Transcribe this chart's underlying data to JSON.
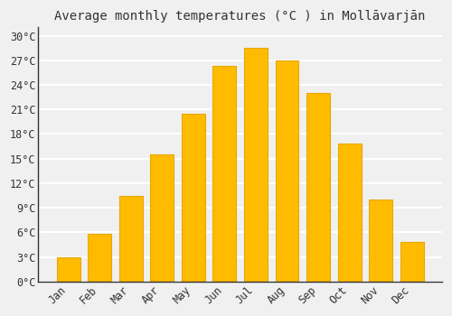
{
  "title": "Average monthly temperatures (°C ) in Mollāvarjān",
  "months": [
    "Jan",
    "Feb",
    "Mar",
    "Apr",
    "May",
    "Jun",
    "Jul",
    "Aug",
    "Sep",
    "Oct",
    "Nov",
    "Dec"
  ],
  "values": [
    3.0,
    5.8,
    10.5,
    15.5,
    20.5,
    26.3,
    28.5,
    27.0,
    23.0,
    16.8,
    10.0,
    4.8
  ],
  "bar_color": "#FFBB00",
  "bar_edge_color": "#E8A800",
  "background_color": "#f0f0f0",
  "grid_color": "#ffffff",
  "ylim": [
    0,
    31
  ],
  "yticks": [
    0,
    3,
    6,
    9,
    12,
    15,
    18,
    21,
    24,
    27,
    30
  ],
  "ytick_labels": [
    "0°C",
    "3°C",
    "6°C",
    "9°C",
    "12°C",
    "15°C",
    "18°C",
    "21°C",
    "24°C",
    "27°C",
    "30°C"
  ],
  "title_fontsize": 10,
  "tick_fontsize": 8.5
}
